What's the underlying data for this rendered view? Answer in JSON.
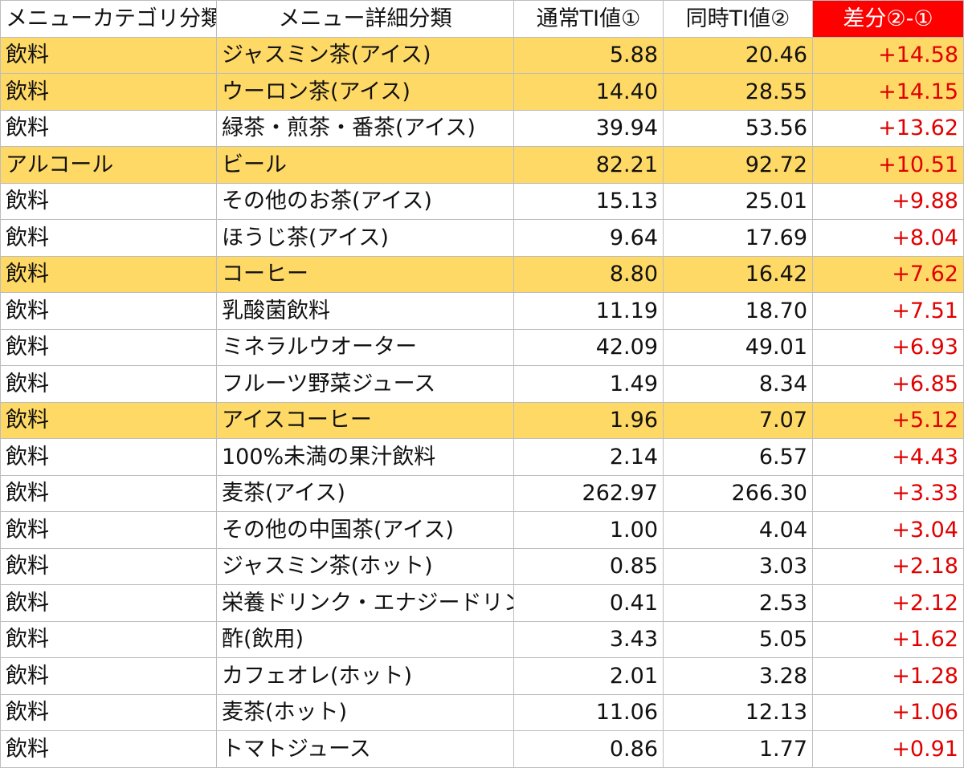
{
  "table": {
    "headers": {
      "category": "メニューカテゴリ分類",
      "detail": "メニュー詳細分類",
      "normal_ti": "通常TI値①",
      "simultaneous_ti": "同時TI値②",
      "diff": "差分②-①"
    },
    "highlight_color": "#ffd966",
    "diff_header_color": "#ff0000",
    "diff_text_color": "#e00000",
    "rows": [
      {
        "category": "飲料",
        "detail": "ジャスミン茶(アイス)",
        "normal": "5.88",
        "simul": "20.46",
        "diff": "+14.58",
        "highlight": true
      },
      {
        "category": "飲料",
        "detail": "ウーロン茶(アイス)",
        "normal": "14.40",
        "simul": "28.55",
        "diff": "+14.15",
        "highlight": true
      },
      {
        "category": "飲料",
        "detail": "緑茶・煎茶・番茶(アイス)",
        "normal": "39.94",
        "simul": "53.56",
        "diff": "+13.62",
        "highlight": false
      },
      {
        "category": "アルコール",
        "detail": "ビール",
        "normal": "82.21",
        "simul": "92.72",
        "diff": "+10.51",
        "highlight": true
      },
      {
        "category": "飲料",
        "detail": "その他のお茶(アイス)",
        "normal": "15.13",
        "simul": "25.01",
        "diff": "+9.88",
        "highlight": false
      },
      {
        "category": "飲料",
        "detail": "ほうじ茶(アイス)",
        "normal": "9.64",
        "simul": "17.69",
        "diff": "+8.04",
        "highlight": false
      },
      {
        "category": "飲料",
        "detail": "コーヒー",
        "normal": "8.80",
        "simul": "16.42",
        "diff": "+7.62",
        "highlight": true
      },
      {
        "category": "飲料",
        "detail": "乳酸菌飲料",
        "normal": "11.19",
        "simul": "18.70",
        "diff": "+7.51",
        "highlight": false
      },
      {
        "category": "飲料",
        "detail": "ミネラルウオーター",
        "normal": "42.09",
        "simul": "49.01",
        "diff": "+6.93",
        "highlight": false
      },
      {
        "category": "飲料",
        "detail": "フルーツ野菜ジュース",
        "normal": "1.49",
        "simul": "8.34",
        "diff": "+6.85",
        "highlight": false
      },
      {
        "category": "飲料",
        "detail": "アイスコーヒー",
        "normal": "1.96",
        "simul": "7.07",
        "diff": "+5.12",
        "highlight": true
      },
      {
        "category": "飲料",
        "detail": "100%未満の果汁飲料",
        "normal": "2.14",
        "simul": "6.57",
        "diff": "+4.43",
        "highlight": false
      },
      {
        "category": "飲料",
        "detail": "麦茶(アイス)",
        "normal": "262.97",
        "simul": "266.30",
        "diff": "+3.33",
        "highlight": false
      },
      {
        "category": "飲料",
        "detail": "その他の中国茶(アイス)",
        "normal": "1.00",
        "simul": "4.04",
        "diff": "+3.04",
        "highlight": false
      },
      {
        "category": "飲料",
        "detail": "ジャスミン茶(ホット)",
        "normal": "0.85",
        "simul": "3.03",
        "diff": "+2.18",
        "highlight": false
      },
      {
        "category": "飲料",
        "detail": "栄養ドリンク・エナジードリンク",
        "normal": "0.41",
        "simul": "2.53",
        "diff": "+2.12",
        "highlight": false
      },
      {
        "category": "飲料",
        "detail": "酢(飲用)",
        "normal": "3.43",
        "simul": "5.05",
        "diff": "+1.62",
        "highlight": false
      },
      {
        "category": "飲料",
        "detail": "カフェオレ(ホット)",
        "normal": "2.01",
        "simul": "3.28",
        "diff": "+1.28",
        "highlight": false
      },
      {
        "category": "飲料",
        "detail": "麦茶(ホット)",
        "normal": "11.06",
        "simul": "12.13",
        "diff": "+1.06",
        "highlight": false
      },
      {
        "category": "飲料",
        "detail": "トマトジュース",
        "normal": "0.86",
        "simul": "1.77",
        "diff": "+0.91",
        "highlight": false
      }
    ]
  }
}
